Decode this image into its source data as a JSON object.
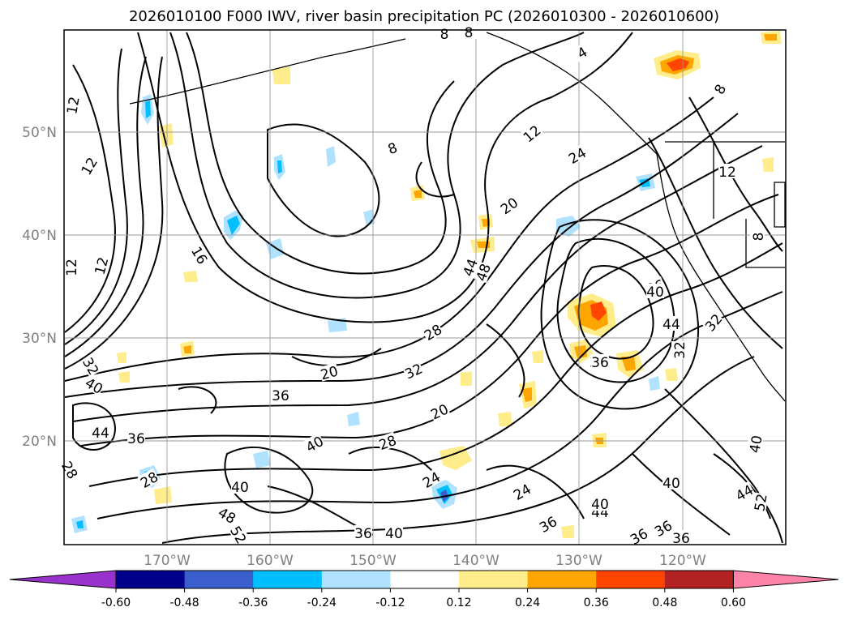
{
  "title": "2026010100 F000 IWV, river basin precipitation PC (2026010300 - 2026010600)",
  "map": {
    "lat_labels": [
      "50°N",
      "40°N",
      "30°N",
      "20°N"
    ],
    "lon_labels": [
      "170°W",
      "160°W",
      "150°W",
      "140°W",
      "130°W",
      "120°W"
    ],
    "gridline_color": "#999999",
    "contour_color": "#000000",
    "contour_labels": [
      {
        "text": "12"
      },
      {
        "text": "12"
      },
      {
        "text": "12"
      },
      {
        "text": "12"
      },
      {
        "text": "8"
      },
      {
        "text": "8"
      },
      {
        "text": "8"
      },
      {
        "text": "4"
      },
      {
        "text": "12"
      },
      {
        "text": "24"
      },
      {
        "text": "20"
      },
      {
        "text": "16"
      },
      {
        "text": "44"
      },
      {
        "text": "48"
      },
      {
        "text": "28"
      },
      {
        "text": "32"
      },
      {
        "text": "20"
      },
      {
        "text": "36"
      },
      {
        "text": "36"
      },
      {
        "text": "40"
      },
      {
        "text": "44"
      },
      {
        "text": "36"
      },
      {
        "text": "20"
      },
      {
        "text": "28"
      },
      {
        "text": "24"
      },
      {
        "text": "24"
      },
      {
        "text": "36"
      },
      {
        "text": "40"
      },
      {
        "text": "40"
      },
      {
        "text": "44"
      },
      {
        "text": "40"
      },
      {
        "text": "36"
      },
      {
        "text": "36"
      },
      {
        "text": "36"
      },
      {
        "text": "36"
      },
      {
        "text": "32"
      },
      {
        "text": "40"
      },
      {
        "text": "44"
      },
      {
        "text": "52"
      },
      {
        "text": "32"
      },
      {
        "text": "28"
      },
      {
        "text": "48"
      },
      {
        "text": "52"
      },
      {
        "text": "28"
      },
      {
        "text": "40"
      },
      {
        "text": "44"
      },
      {
        "text": "40"
      },
      {
        "text": "8"
      },
      {
        "text": "8"
      },
      {
        "text": "12"
      },
      {
        "text": "36"
      },
      {
        "text": "32"
      },
      {
        "text": "36"
      },
      {
        "text": "40"
      }
    ]
  },
  "colorbar": {
    "ticks": [
      "-0.60",
      "-0.48",
      "-0.36",
      "-0.24",
      "-0.12",
      "0.12",
      "0.24",
      "0.36",
      "0.48",
      "0.60"
    ],
    "colors": [
      "#9932CC",
      "#00008B",
      "#3A5FCD",
      "#00BFFF",
      "#B0E2FF",
      "#FFFFFF",
      "#FFEC8B",
      "#FFA500",
      "#FF4500",
      "#B22222",
      "#FF83A9"
    ]
  }
}
